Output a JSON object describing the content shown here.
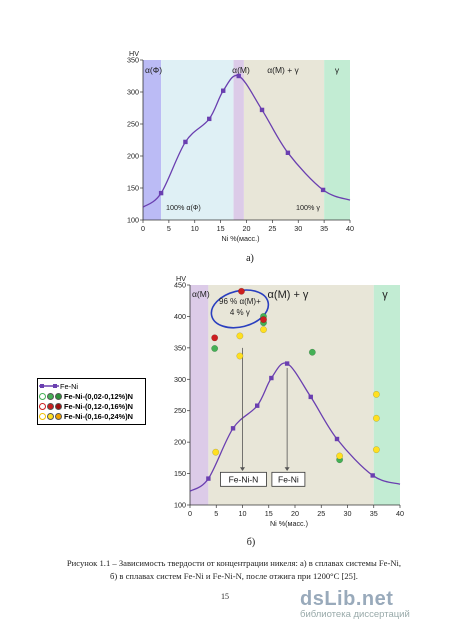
{
  "chart_data": [
    {
      "type": "line",
      "panel_label": "а)",
      "ylabel": "HV",
      "xlabel": "Ni %(масс.)",
      "xlim": [
        0,
        40
      ],
      "ylim": [
        100,
        350
      ],
      "xticks": [
        "0",
        "5",
        "10",
        "15",
        "20",
        "25",
        "30",
        "35",
        "40"
      ],
      "yticks": [
        "100",
        "150",
        "200",
        "250",
        "300",
        "350"
      ],
      "regions": [
        {
          "label": "α(Ф)",
          "from": 0,
          "to": 3.5,
          "color": "#bbbbf5"
        },
        {
          "label": "",
          "from": 3.5,
          "to": 17.5,
          "color": "#dff0f5"
        },
        {
          "label": "α(M)",
          "from": 17.5,
          "to": 19.5,
          "color": "#dccbe8"
        },
        {
          "label": "α(M) + γ",
          "from": 19.5,
          "to": 35,
          "color": "#e8e6d8"
        },
        {
          "label": "γ",
          "from": 35,
          "to": 40,
          "color": "#c2ecd3"
        }
      ],
      "annotations": [
        "100% α(Ф)",
        "100% γ"
      ],
      "series": [
        {
          "name": "",
          "color": "#6a3fb0",
          "x": [
            3.5,
            8.2,
            12.8,
            15.5,
            18.5,
            23.0,
            28.0,
            34.8
          ],
          "y": [
            142,
            222,
            258,
            302,
            325,
            272,
            205,
            147
          ]
        }
      ]
    },
    {
      "type": "line",
      "panel_label": "б)",
      "ylabel": "HV",
      "xlabel": "Ni %(масс.)",
      "xlim": [
        0,
        40
      ],
      "ylim": [
        100,
        450
      ],
      "xticks": [
        "0",
        "5",
        "10",
        "15",
        "20",
        "25",
        "30",
        "35",
        "40"
      ],
      "yticks": [
        "100",
        "150",
        "200",
        "250",
        "300",
        "350",
        "400",
        "450"
      ],
      "regions": [
        {
          "label": "α(M)",
          "from": 0,
          "to": 3.5,
          "color": "#dccbe8"
        },
        {
          "label": "α(M) + γ",
          "from": 3.5,
          "to": 35,
          "color": "#e8e6d8"
        },
        {
          "label": "γ",
          "from": 35,
          "to": 40,
          "color": "#c2ecd3"
        }
      ],
      "ellipse_text": [
        "96 % α(M)+",
        "4 % γ"
      ],
      "boxes": [
        "Fe-Ni-N",
        "Fe-Ni"
      ],
      "legend": {
        "title": "Fe-Ni",
        "items": [
          {
            "label": "Fe-Ni-(0,02-0,12%)N",
            "colors": [
              "#44b055",
              "#44b055",
              "#44b055"
            ],
            "first_hollow": true
          },
          {
            "label": "Fe-Ni-(0,12-0,16%)N",
            "colors": [
              "#cc1f1f",
              "#cc1f1f",
              "#cc1f1f"
            ],
            "first_hollow": true
          },
          {
            "label": "Fe-Ni-(0,16-0,24%)N",
            "colors": [
              "#ffe020",
              "#ffe020",
              "#f0a000"
            ],
            "first_hollow": true
          }
        ]
      },
      "series": [
        {
          "name": "Fe-Ni",
          "color": "#6a3fb0",
          "x": [
            3.5,
            8.2,
            12.8,
            15.5,
            18.5,
            23.0,
            28.0,
            34.8
          ],
          "y": [
            142,
            222,
            258,
            302,
            325,
            272,
            205,
            147
          ]
        },
        {
          "name": "Fe-Ni-(0,02-0,12%)N",
          "color": "#44b055",
          "x": [
            4.7,
            14.0,
            14.0,
            23.3,
            28.5
          ],
          "y": [
            349,
            400,
            390,
            343,
            172
          ]
        },
        {
          "name": "Fe-Ni-(0,12-0,16%)N",
          "color": "#cc1f1f",
          "x": [
            4.7,
            9.8,
            14.0
          ],
          "y": [
            366,
            440,
            395
          ]
        },
        {
          "name": "Fe-Ni-(0,16-0,24%)N",
          "color": "#ffe020",
          "x": [
            4.9,
            9.5,
            9.5,
            14.0,
            28.5,
            35.5,
            35.5,
            35.5
          ],
          "y": [
            184,
            337,
            369,
            379,
            178,
            276,
            238,
            188
          ]
        }
      ]
    }
  ],
  "caption": {
    "line1": "Рисунок 1.1 – Зависимость твердости от концентрации никеля: а) в сплавах системы Fe-Ni,",
    "line2": "б) в сплавах систем Fe-Ni и Fe-Ni-N, после отжига при 1200°С [25]."
  },
  "page_number": "15",
  "watermark": {
    "logo": "dsLib.net",
    "tagline": "библиотека диссертаций"
  }
}
